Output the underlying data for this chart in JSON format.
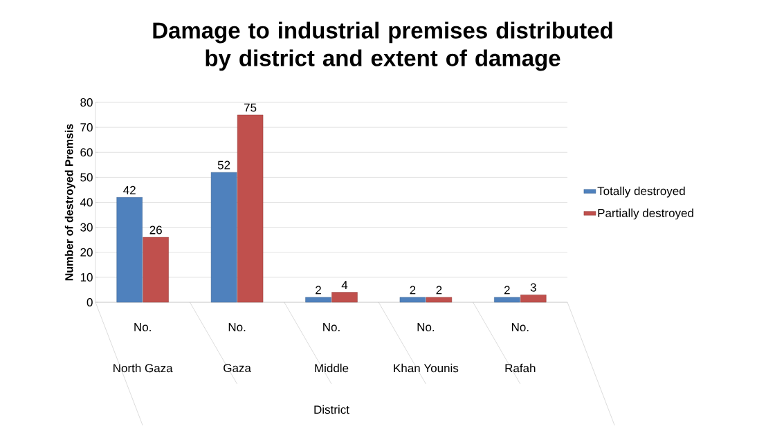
{
  "chart_data": {
    "type": "bar",
    "title": "Damage to industrial premises distributed by district and extent of damage",
    "xlabel": "District",
    "ylabel": "Number of destroyed Premsis",
    "categories": [
      "North Gaza",
      "Gaza",
      "Middle",
      "Khan Younis",
      "Rafah"
    ],
    "series": [
      {
        "name": "Totally destroyed",
        "color": "#4f81bd",
        "values": [
          42,
          52,
          2,
          2,
          2
        ]
      },
      {
        "name": "Partially destroyed",
        "color": "#c0504d",
        "values": [
          26,
          75,
          4,
          2,
          3
        ]
      }
    ],
    "annotations": [
      "No.",
      "No.",
      "No.",
      "No.",
      "No."
    ],
    "ylim": [
      0,
      80
    ],
    "yticks": [
      0,
      10,
      20,
      30,
      40,
      50,
      60,
      70,
      80
    ],
    "grid": "y",
    "legend": "right",
    "data_labels": true
  }
}
